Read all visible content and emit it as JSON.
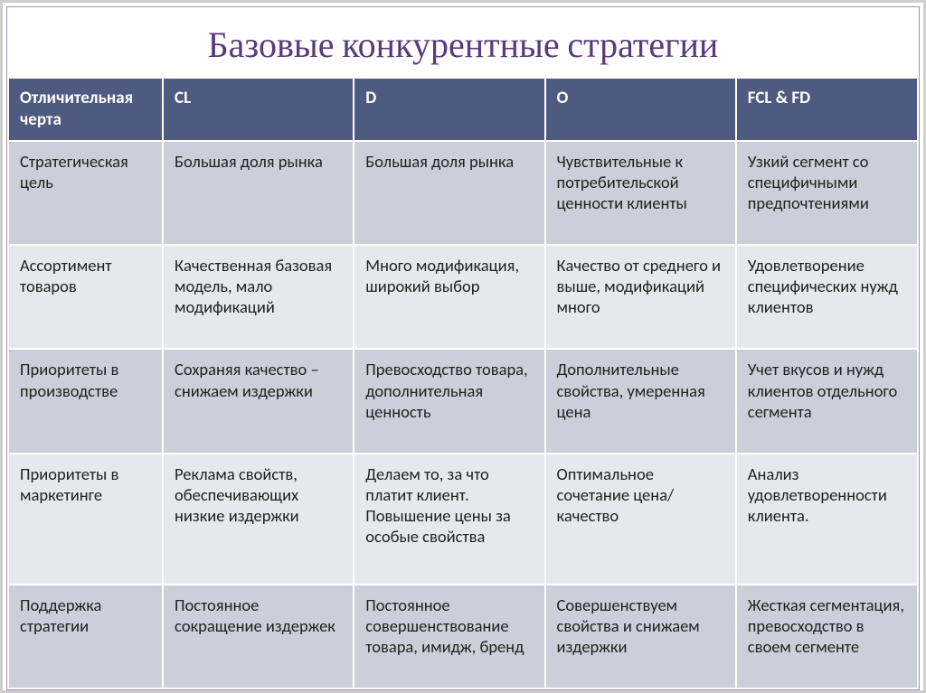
{
  "title": "Базовые конкурентные стратегии",
  "colors": {
    "title_color": "#5a3a7a",
    "header_bg": "#4f5a80",
    "header_fg": "#ffffff",
    "band_a": "#cccfda",
    "band_b": "#e7e8ee",
    "outer_border": "#cfcfcf",
    "inner_border": "#a38fb3",
    "cell_border": "#ffffff",
    "text_color": "#222222"
  },
  "typography": {
    "title_fontsize_pt": 30,
    "cell_fontsize_pt": 14,
    "header_fontsize_pt": 14.5,
    "title_font": "Cambria",
    "body_font": "Calibri"
  },
  "table": {
    "type": "table",
    "column_widths_pct": [
      17,
      21,
      21,
      21,
      20
    ],
    "columns": [
      "Отличительная черта",
      "CL",
      "D",
      "O",
      "FCL & FD"
    ],
    "row_bands": [
      "a",
      "b",
      "a",
      "b",
      "a"
    ],
    "rows": [
      [
        "Стратегическая цель",
        "Большая доля рынка",
        "Большая доля рынка",
        "Чувствительные к потребительской ценности клиенты",
        "Узкий сегмент со специфичными предпочтениями"
      ],
      [
        "Ассортимент товаров",
        "Качественная базовая модель, мало модификаций",
        "Много модификация, широкий выбор",
        "Качество от среднего и выше, модификаций много",
        "Удовлетворение специфических нужд клиентов"
      ],
      [
        "Приоритеты в производстве",
        "Сохраняя качество – снижаем издержки",
        "Превосходство товара, дополнительная ценность",
        "Дополнительные свойства, умеренная цена",
        "Учет вкусов и нужд клиентов отдельного сегмента"
      ],
      [
        "Приоритеты в маркетинге",
        "Реклама свойств, обеспечивающих низкие издержки",
        "Делаем то, за что платит клиент. Повышение цены за особые свойства",
        "Оптимальное сочетание цена/качество",
        "Анализ удовлетворенности клиента."
      ],
      [
        "Поддержка стратегии",
        "Постоянное сокращение издержек",
        "Постоянное совершенствование товара, имидж, бренд",
        "Совершенствуем свойства и снижаем издержки",
        "Жесткая сегментация, превосходство в своем сегменте"
      ]
    ]
  }
}
